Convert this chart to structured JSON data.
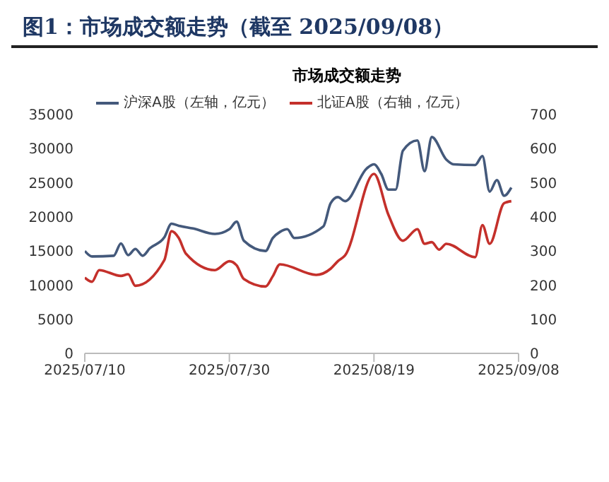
{
  "chart_data": {
    "type": "line",
    "title": "图1：市场成交额走势（截至 2025/09/08）",
    "subtitle": "市场成交额走势",
    "xlim": [
      "2025-07-10",
      "2025-09-08"
    ],
    "xticks": [
      {
        "value": "2025-07-10",
        "label": "2025/07/10"
      },
      {
        "value": "2025-07-30",
        "label": "2025/07/30"
      },
      {
        "value": "2025-08-19",
        "label": "2025/08/19"
      },
      {
        "value": "2025-09-08",
        "label": "2025/09/08"
      }
    ],
    "ylim": [
      0,
      35000
    ],
    "yticks": [
      0,
      5000,
      10000,
      15000,
      20000,
      25000,
      30000,
      35000
    ],
    "y2lim": [
      0,
      700
    ],
    "y2ticks": [
      0,
      100,
      200,
      300,
      400,
      500,
      600,
      700
    ],
    "legend": "top",
    "marker": "none",
    "line_style": "solid",
    "series": [
      {
        "name": "沪深A股（左轴，亿元）",
        "color": "#44597b",
        "x": [
          "2025-07-10",
          "2025-07-11",
          "2025-07-14",
          "2025-07-15",
          "2025-07-16",
          "2025-07-17",
          "2025-07-18",
          "2025-07-19",
          "2025-07-21",
          "2025-07-22",
          "2025-07-23",
          "2025-07-25",
          "2025-07-28",
          "2025-07-30",
          "2025-07-31",
          "2025-08-01",
          "2025-08-04",
          "2025-08-05",
          "2025-08-06",
          "2025-08-07",
          "2025-08-08",
          "2025-08-12",
          "2025-08-13",
          "2025-08-14",
          "2025-08-15",
          "2025-08-18",
          "2025-08-19",
          "2025-08-20",
          "2025-08-21",
          "2025-08-22",
          "2025-08-23",
          "2025-08-25",
          "2025-08-26",
          "2025-08-27",
          "2025-08-29",
          "2025-08-30",
          "2025-09-02",
          "2025-09-03",
          "2025-09-04",
          "2025-09-05",
          "2025-09-06",
          "2025-09-07"
        ],
        "values": [
          15000,
          14200,
          14300,
          16100,
          14400,
          15300,
          14300,
          15400,
          17000,
          19000,
          18700,
          18300,
          17500,
          18200,
          19300,
          16500,
          15000,
          16900,
          17800,
          18200,
          16900,
          18600,
          22000,
          22900,
          22300,
          27100,
          27700,
          26300,
          24000,
          24000,
          29700,
          31200,
          26700,
          31700,
          28400,
          27700,
          27600,
          28900,
          23700,
          25400,
          23100,
          24300
        ]
      },
      {
        "name": "北证A股（右轴，亿元）",
        "color": "#c4302b",
        "axis": "y2",
        "x": [
          "2025-07-10",
          "2025-07-11",
          "2025-07-12",
          "2025-07-15",
          "2025-07-16",
          "2025-07-17",
          "2025-07-21",
          "2025-07-22",
          "2025-07-23",
          "2025-07-24",
          "2025-07-28",
          "2025-07-30",
          "2025-07-31",
          "2025-08-01",
          "2025-08-04",
          "2025-08-05",
          "2025-08-06",
          "2025-08-11",
          "2025-08-13",
          "2025-08-14",
          "2025-08-15",
          "2025-08-19",
          "2025-08-21",
          "2025-08-23",
          "2025-08-25",
          "2025-08-26",
          "2025-08-27",
          "2025-08-28",
          "2025-08-29",
          "2025-09-02",
          "2025-09-03",
          "2025-09-04",
          "2025-09-06",
          "2025-09-07"
        ],
        "values": [
          222,
          210,
          244,
          227,
          232,
          198,
          273,
          358,
          338,
          292,
          244,
          270,
          258,
          218,
          196,
          226,
          261,
          230,
          248,
          270,
          287,
          526,
          406,
          330,
          364,
          321,
          326,
          304,
          321,
          282,
          376,
          321,
          440,
          446
        ]
      }
    ]
  }
}
